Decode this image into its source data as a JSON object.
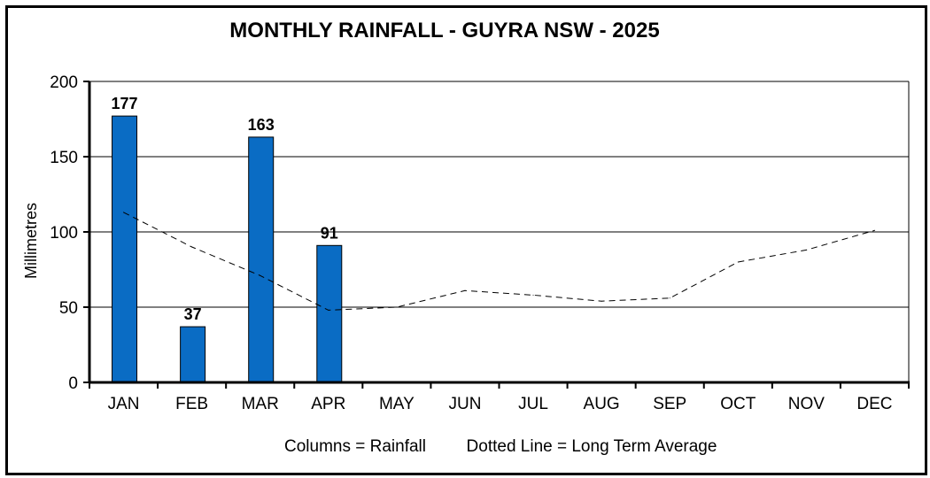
{
  "chart_data": {
    "type": "bar",
    "title": "MONTHLY RAINFALL - GUYRA NSW - 2025",
    "ylabel": "Millimetres",
    "xlabel": "",
    "ylim": [
      0,
      200
    ],
    "yticks": [
      0,
      50,
      100,
      150,
      200
    ],
    "grid": true,
    "categories": [
      "JAN",
      "FEB",
      "MAR",
      "APR",
      "MAY",
      "JUN",
      "JUL",
      "AUG",
      "SEP",
      "OCT",
      "NOV",
      "DEC"
    ],
    "series": [
      {
        "kind": "bar",
        "values": [
          177,
          37,
          163,
          91,
          null,
          null,
          null,
          null,
          null,
          null,
          null,
          null
        ],
        "color": "#0a6cc4"
      },
      {
        "kind": "line",
        "style": "dashed",
        "values": [
          113,
          90,
          71,
          48,
          50,
          61,
          58,
          54,
          56,
          80,
          88,
          101
        ],
        "color": "#000000"
      }
    ],
    "legend_text": [
      "Columns = Rainfall",
      "Dotted Line = Long Term Average"
    ]
  }
}
